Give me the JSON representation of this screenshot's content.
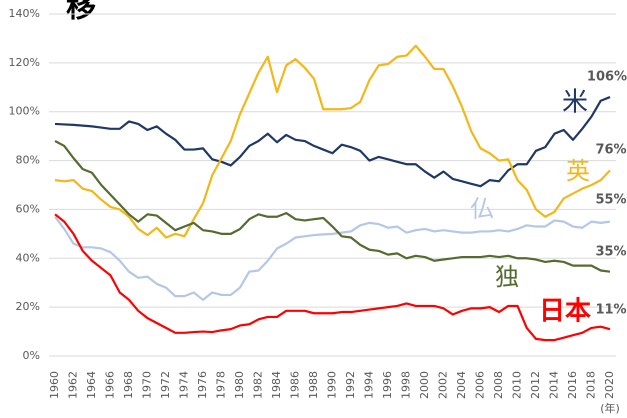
{
  "chart_data": {
    "type": "line",
    "title": "移",
    "x_unit_label": "(年)",
    "x": [
      1960,
      1961,
      1962,
      1963,
      1964,
      1965,
      1966,
      1967,
      1968,
      1969,
      1970,
      1971,
      1972,
      1973,
      1974,
      1975,
      1976,
      1977,
      1978,
      1979,
      1980,
      1981,
      1982,
      1983,
      1984,
      1985,
      1986,
      1987,
      1988,
      1989,
      1990,
      1991,
      1992,
      1993,
      1994,
      1995,
      1996,
      1997,
      1998,
      1999,
      2000,
      2001,
      2002,
      2003,
      2004,
      2005,
      2006,
      2007,
      2008,
      2009,
      2010,
      2011,
      2012,
      2013,
      2014,
      2015,
      2016,
      2017,
      2018,
      2019,
      2020
    ],
    "xlim": [
      1960,
      2020
    ],
    "xticks": [
      1960,
      1962,
      1964,
      1966,
      1968,
      1970,
      1972,
      1974,
      1976,
      1978,
      1980,
      1982,
      1984,
      1986,
      1988,
      1990,
      1992,
      1994,
      1996,
      1998,
      2000,
      2002,
      2004,
      2006,
      2008,
      2010,
      2012,
      2014,
      2016,
      2018,
      2020
    ],
    "ylim": [
      0,
      140
    ],
    "yticks": [
      {
        "value": 0,
        "label": "0%"
      },
      {
        "value": 20,
        "label": "20%"
      },
      {
        "value": 40,
        "label": "40%"
      },
      {
        "value": 60,
        "label": "60%"
      },
      {
        "value": 80,
        "label": "80%"
      },
      {
        "value": 100,
        "label": "100%"
      },
      {
        "value": 120,
        "label": "120%"
      },
      {
        "value": 140,
        "label": "140%"
      }
    ],
    "grid": true,
    "series": [
      {
        "name": "米",
        "color": "#1f3864",
        "end_label": "106%",
        "values": [
          95,
          94.8,
          94.6,
          94.3,
          94,
          93.5,
          93,
          93,
          96,
          95,
          92.5,
          94,
          91,
          88.5,
          84.5,
          84.5,
          85,
          80.5,
          79.5,
          78,
          81.5,
          86,
          88,
          91,
          87.5,
          90.5,
          88.5,
          88,
          86,
          84.5,
          83,
          86.5,
          85.5,
          84,
          80,
          81.5,
          80.5,
          79.5,
          78.5,
          78.5,
          75.5,
          73,
          75.5,
          72.5,
          71.5,
          70.5,
          69.5,
          72,
          71.5,
          76,
          78.5,
          78.5,
          84,
          85.5,
          91,
          92.5,
          88.5,
          93,
          98,
          104.5,
          106
        ]
      },
      {
        "name": "英",
        "color": "#f4b71a",
        "end_label": "76%",
        "values": [
          72,
          71.5,
          72,
          68.5,
          67.5,
          64,
          61,
          60,
          57,
          52,
          49.5,
          52.5,
          48.5,
          50,
          49,
          56,
          62.5,
          74,
          81,
          88,
          99,
          107.5,
          116,
          122.5,
          108,
          119,
          121.5,
          118,
          113.5,
          101,
          101,
          101,
          101.5,
          104,
          113,
          119,
          119.5,
          122.5,
          123,
          127,
          122.5,
          117.5,
          117.5,
          110.5,
          102,
          92,
          85,
          83,
          80,
          80.5,
          72,
          68,
          60,
          57,
          59,
          64.5,
          66.5,
          68.5,
          70,
          72,
          76
        ]
      },
      {
        "name": "仏",
        "color": "#b4c7e7",
        "end_label": "55%",
        "values": [
          57,
          52,
          46,
          44.5,
          44.5,
          44,
          42.5,
          39,
          34.5,
          32,
          32.5,
          29.5,
          28,
          24.5,
          24.5,
          26,
          23,
          26,
          25,
          25,
          28,
          34.5,
          35,
          39,
          44,
          46,
          48.5,
          49,
          49.5,
          49.8,
          50,
          50.5,
          51,
          53.5,
          54.5,
          54,
          52.5,
          53,
          50.5,
          51.5,
          52,
          51,
          51.5,
          51,
          50.5,
          50.5,
          51,
          51,
          51.5,
          51,
          52,
          53.5,
          53,
          53,
          55.5,
          55,
          53,
          52.5,
          55,
          54.5,
          55
        ]
      },
      {
        "name": "独",
        "color": "#556b2f",
        "end_label": "35%",
        "values": [
          88,
          86,
          81,
          76.5,
          75,
          70,
          66,
          62,
          58,
          55,
          58,
          57.5,
          54.5,
          51.5,
          53,
          54.5,
          51.5,
          51,
          50,
          50,
          52,
          56,
          58,
          57,
          57,
          58.5,
          56,
          55.5,
          56,
          56.5,
          53,
          49,
          48.5,
          45.5,
          43.5,
          43,
          41.5,
          42,
          40,
          41,
          40.5,
          39,
          39.5,
          40,
          40.5,
          40.5,
          40.5,
          41,
          40.5,
          41,
          40,
          40,
          39.5,
          38.5,
          39,
          38.5,
          37,
          37,
          37,
          35,
          34.5
        ]
      },
      {
        "name": "日本",
        "color": "#ff0000",
        "end_label": "11%",
        "values": [
          58,
          55,
          50,
          43,
          39,
          36,
          33,
          26,
          23,
          18.5,
          15.5,
          13.5,
          11.5,
          9.5,
          9.5,
          9.8,
          10,
          9.8,
          10.5,
          11,
          12.5,
          13,
          15,
          16,
          16,
          18.5,
          18.5,
          18.5,
          17.5,
          17.5,
          17.5,
          18,
          18,
          18.5,
          19,
          19.5,
          20,
          20.5,
          21.5,
          20.5,
          20.5,
          20.5,
          19.5,
          17,
          18.5,
          19.5,
          19.5,
          20,
          18,
          20.5,
          20.5,
          11.5,
          7,
          6.5,
          6.5,
          7.5,
          8.5,
          9.5,
          11.5,
          12,
          11
        ]
      }
    ]
  }
}
